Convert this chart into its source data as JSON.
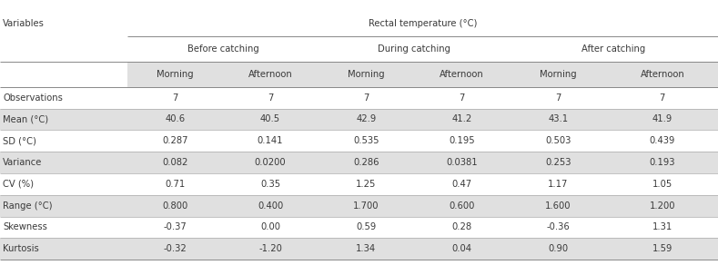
{
  "col_header_level1_left": "Variables",
  "col_header_level1_right": "Rectal temperature (°C)",
  "col_header_level2": [
    "Before catching",
    "During catching",
    "After catching"
  ],
  "col_header_level3": [
    "Morning",
    "Afternoon",
    "Morning",
    "Afternoon",
    "Morning",
    "Afternoon"
  ],
  "rows": [
    [
      "Observations",
      "7",
      "7",
      "7",
      "7",
      "7",
      "7"
    ],
    [
      "Mean (°C)",
      "40.6",
      "40.5",
      "42.9",
      "41.2",
      "43.1",
      "41.9"
    ],
    [
      "SD (°C)",
      "0.287",
      "0.141",
      "0.535",
      "0.195",
      "0.503",
      "0.439"
    ],
    [
      "Variance",
      "0.082",
      "0.0200",
      "0.286",
      "0.0381",
      "0.253",
      "0.193"
    ],
    [
      "CV (%)",
      "0.71",
      "0.35",
      "1.25",
      "0.47",
      "1.17",
      "1.05"
    ],
    [
      "Range (°C)",
      "0.800",
      "0.400",
      "1.700",
      "0.600",
      "1.600",
      "1.200"
    ],
    [
      "Skewness",
      "-0.37",
      "0.00",
      "0.59",
      "0.28",
      "-0.36",
      "1.31"
    ],
    [
      "Kurtosis",
      "-0.32",
      "-1.20",
      "1.34",
      "0.04",
      "0.90",
      "1.59"
    ]
  ],
  "header3_shaded": true,
  "data_shaded_rows": [
    1,
    3,
    5,
    7
  ],
  "shaded_color": "#e0e0e0",
  "bg_color": "#ffffff",
  "text_color": "#3a3a3a",
  "line_color": "#aaaaaa",
  "thick_line_color": "#888888",
  "font_size": 7.2,
  "header_font_size": 7.2,
  "figwidth": 7.89,
  "figheight": 2.92,
  "dpi": 100
}
